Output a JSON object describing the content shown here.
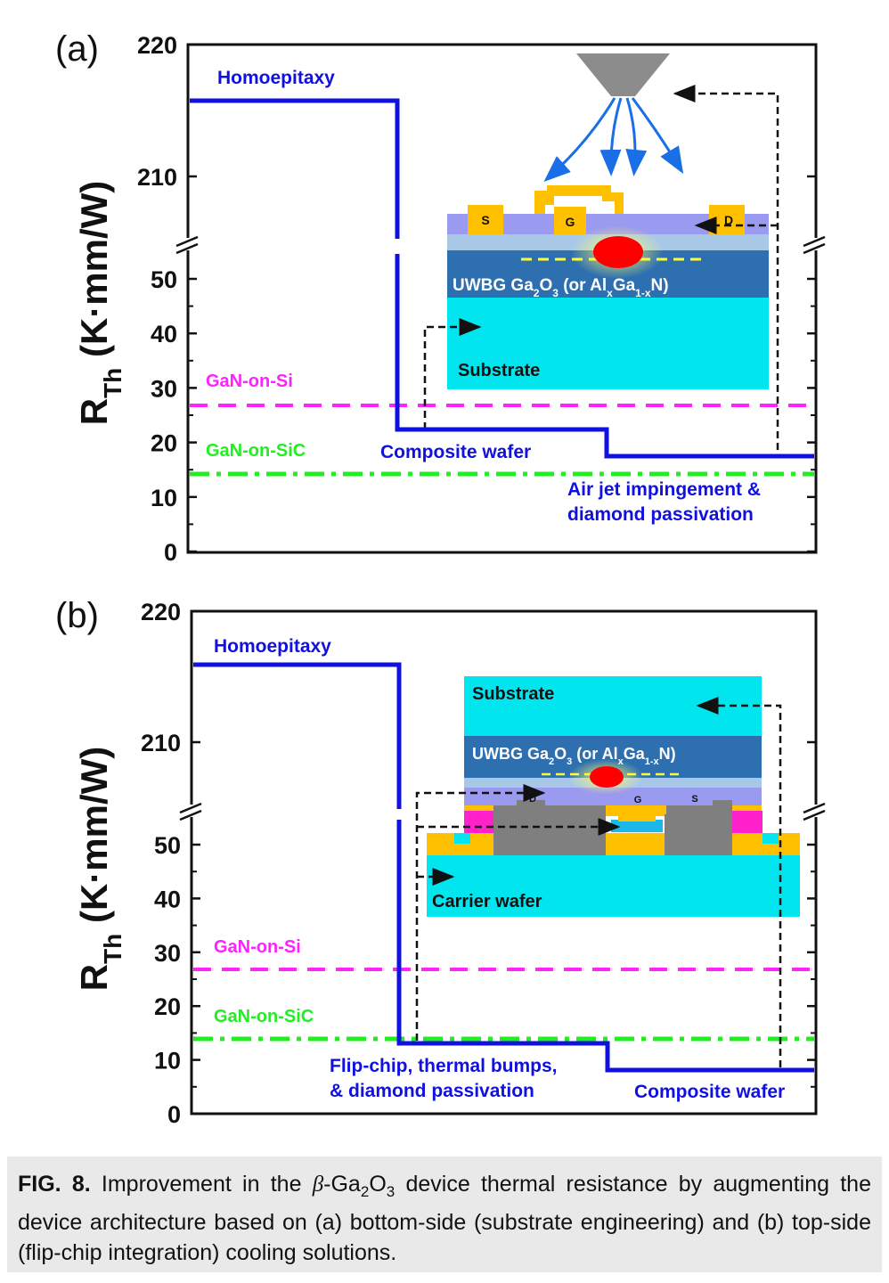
{
  "chart_data": [
    {
      "type": "line",
      "panel_label": "(a)",
      "ylabel": "R_Th (K·mm/W)",
      "ylabel_main": "R",
      "ylabel_sub": "Th",
      "ylabel_rest": " (K·mm/W)",
      "yaxis": {
        "broken": true,
        "lower_range": [
          0,
          55
        ],
        "upper_range": [
          205,
          220
        ],
        "ticks": [
          "0",
          "10",
          "20",
          "30",
          "40",
          "50",
          "210",
          "220"
        ]
      },
      "series": [
        {
          "name": "Homoepitaxy",
          "color": "#1010e0",
          "steps": [
            {
              "label": "Homoepitaxy",
              "value": 216
            },
            {
              "label": "Composite wafer",
              "value": 22
            },
            {
              "label": "Air jet impingement & diamond passivation",
              "value": 17
            }
          ]
        }
      ],
      "step_labels": [
        "Homoepitaxy",
        "Composite wafer",
        "Air jet impingement &",
        "diamond passivation"
      ],
      "reference_lines": [
        {
          "label": "GaN-on-Si",
          "value": 26.5,
          "color": "#ff22ff",
          "style": "dashed"
        },
        {
          "label": "GaN-on-SiC",
          "value": 14,
          "color": "#22ee22",
          "style": "dash-dot"
        }
      ],
      "inset": {
        "layer_labels": [
          "S",
          "G",
          "D",
          "UWBG Ga2O3 (or AlxGa1-xN)",
          "Substrate"
        ],
        "channel_text": "UWBG Ga",
        "channel_text_2": "O",
        "channel_text_3": " (or Al",
        "channel_text_4": "Ga",
        "channel_text_5": "N)",
        "sub_2": "2",
        "sub_3": "3",
        "sub_x": "x",
        "sub_1x": "1-x",
        "substrate_text": "Substrate",
        "s_text": "S",
        "g_text": "G",
        "d_text": "D"
      }
    },
    {
      "type": "line",
      "panel_label": "(b)",
      "ylabel": "R_Th (K·mm/W)",
      "ylabel_main": "R",
      "ylabel_sub": "Th",
      "ylabel_rest": " (K·mm/W)",
      "yaxis": {
        "broken": true,
        "lower_range": [
          0,
          55
        ],
        "upper_range": [
          205,
          220
        ],
        "ticks": [
          "0",
          "10",
          "20",
          "30",
          "40",
          "50",
          "210",
          "220"
        ]
      },
      "series": [
        {
          "name": "Homoepitaxy",
          "color": "#1010e0",
          "steps": [
            {
              "label": "Homoepitaxy",
              "value": 216
            },
            {
              "label": "Flip-chip, thermal bumps, & diamond passivation",
              "value": 13
            },
            {
              "label": "Composite wafer",
              "value": 8
            }
          ]
        }
      ],
      "step_labels": [
        "Homoepitaxy",
        "Flip-chip, thermal bumps,",
        "& diamond passivation",
        "Composite wafer"
      ],
      "reference_lines": [
        {
          "label": "GaN-on-Si",
          "value": 27,
          "color": "#ff22ff",
          "style": "dashed"
        },
        {
          "label": "GaN-on-SiC",
          "value": 14,
          "color": "#22ee22",
          "style": "dash-dot"
        }
      ],
      "inset": {
        "substrate_text": "Substrate",
        "channel_text": "UWBG Ga",
        "channel_text_2": "O",
        "channel_text_3": " (or Al",
        "channel_text_4": "Ga",
        "channel_text_5": "N)",
        "sub_2": "2",
        "sub_3": "3",
        "sub_x": "x",
        "sub_1x": "1-x",
        "carrier_text": "Carrier wafer",
        "d_text": "D",
        "g_text": "G",
        "s_text": "S"
      }
    }
  ],
  "caption": {
    "label": "FIG. 8.",
    "text_pre": " Improvement in the ",
    "beta": "β",
    "text_ga": "-Ga",
    "sub_2": "2",
    "text_o": "O",
    "sub_3": "3",
    "text_post": " device thermal resistance by augmenting the device architecture based on (a) bottom-side (substrate engineering) and (b) top-side (flip-chip integration) cooling solutions."
  },
  "colors": {
    "step_line": "#1010e0",
    "gan_si": "#ff22ff",
    "gan_sic": "#22ee22",
    "substrate": "#00e5ee",
    "channel": "#2e6fb0",
    "barrier": "#9a9af0",
    "metal": "#ffc000",
    "hotspot": "#ff0000",
    "bump": "#7f7f7f",
    "nozzle": "#8c8c8c"
  }
}
